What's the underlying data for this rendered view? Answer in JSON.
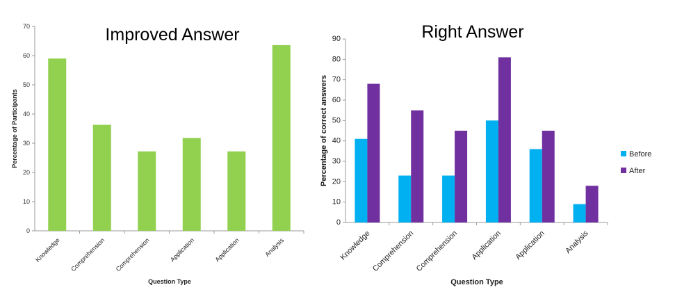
{
  "chart_data": [
    {
      "type": "bar",
      "title": "Improved Answer",
      "xlabel": "Question Type",
      "ylabel": "Percentage of Participants",
      "categories": [
        "Knowledge",
        "Comprehension",
        "Comprehension",
        "Application",
        "Application",
        "Analysis"
      ],
      "series": [
        {
          "values": [
            59,
            36.3,
            27.2,
            31.8,
            27.2,
            63.6
          ],
          "color": "#92d050"
        }
      ],
      "ylim": [
        0,
        70
      ],
      "yticks": [
        0,
        10,
        20,
        30,
        40,
        50,
        60,
        70
      ],
      "grid": false
    },
    {
      "type": "bar",
      "title": "Right Answer",
      "xlabel": "Question Type",
      "ylabel": "Percentage of correct answers",
      "categories": [
        "Knowledge",
        "Comprehension",
        "Comprehension",
        "Application",
        "Application",
        "Analysis"
      ],
      "series": [
        {
          "name": "Before",
          "values": [
            41,
            23,
            23,
            50,
            36,
            9
          ],
          "color": "#00b0f0"
        },
        {
          "name": "After",
          "values": [
            68,
            55,
            45,
            81,
            45,
            18
          ],
          "color": "#7030a0"
        }
      ],
      "ylim": [
        0,
        90
      ],
      "yticks": [
        0,
        10,
        20,
        30,
        40,
        50,
        60,
        70,
        80,
        90
      ],
      "grid": false,
      "legend": "right"
    }
  ]
}
